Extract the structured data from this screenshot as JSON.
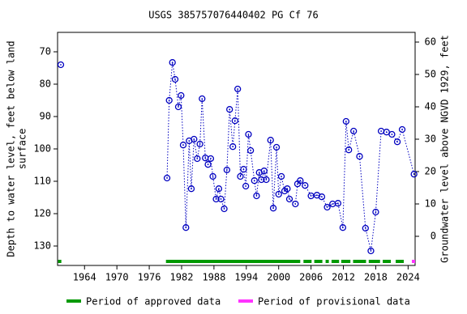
{
  "chart_data": {
    "type": "scatter",
    "title": "USGS 385757076440402 PG Cf  76",
    "y_label": [
      "Depth to water level, feet below land",
      "surface"
    ],
    "y2_label": "Groundwater level above NGVD 1929, feet",
    "xlim": [
      1959,
      2025.3
    ],
    "xticks": [
      1964,
      1970,
      1976,
      1982,
      1988,
      1994,
      2000,
      2006,
      2012,
      2018,
      2024
    ],
    "ylim": [
      136,
      64
    ],
    "yticks": [
      70,
      80,
      90,
      100,
      110,
      120,
      130
    ],
    "y2lim": [
      -9,
      63
    ],
    "y2ticks": [
      60,
      50,
      40,
      30,
      20,
      10,
      0
    ],
    "series": [
      {
        "name": "Depth to water level",
        "color": "#0000c0",
        "x": [
          1959.6,
          1979.3,
          1979.7,
          1980.3,
          1980.8,
          1981.4,
          1981.9,
          1982.3,
          1982.8,
          1983.4,
          1983.8,
          1984.3,
          1984.9,
          1985.4,
          1985.8,
          1986.4,
          1986.9,
          1987.4,
          1987.8,
          1988.4,
          1988.9,
          1989.3,
          1989.9,
          1990.4,
          1990.9,
          1991.5,
          1991.9,
          1992.4,
          1992.9,
          1993.5,
          1993.9,
          1994.4,
          1994.8,
          1995.5,
          1995.9,
          1996.4,
          1996.8,
          1997.3,
          1997.7,
          1998.5,
          1999.0,
          1999.6,
          2000.0,
          2000.5,
          2001.1,
          2001.6,
          2002.0,
          2003.1,
          2003.5,
          2004.0,
          2004.9,
          2006.0,
          2007.1,
          2008.0,
          2009.0,
          2010.0,
          2011.0,
          2011.9,
          2012.5,
          2013.0,
          2013.9,
          2015.0,
          2016.1,
          2017.1,
          2018.0,
          2019.0,
          2020.0,
          2021.0,
          2022.0,
          2022.9,
          2025.1
        ],
        "values": [
          74,
          109,
          85,
          73.3,
          78.5,
          87,
          83.5,
          98.8,
          124.3,
          97.5,
          112.3,
          97,
          103,
          98.5,
          84.5,
          102.8,
          104.8,
          103,
          108.5,
          115.5,
          112.3,
          115.5,
          118.5,
          106.5,
          87.8,
          99.3,
          91.3,
          81.5,
          108.5,
          106.3,
          111.5,
          95.5,
          100.5,
          109.8,
          114.5,
          107.3,
          109.5,
          106.8,
          109.5,
          97.3,
          118.3,
          99.5,
          114,
          108.5,
          113,
          112.3,
          115.5,
          117,
          110.8,
          109.8,
          111.3,
          114.5,
          114.3,
          114.8,
          118,
          117,
          116.8,
          124.3,
          91.5,
          100.3,
          94.5,
          102.3,
          124.5,
          131.5,
          119.5,
          94.5,
          94.8,
          95.5,
          97.8,
          94,
          107.8
        ]
      }
    ],
    "periods": [
      {
        "name": "Period of approved data",
        "color": "#009900",
        "ranges": [
          [
            1959.1,
            1959.7
          ],
          [
            1979.1,
            2004.0
          ],
          [
            2004.6,
            2006.1
          ],
          [
            2006.6,
            2008.1
          ],
          [
            2008.7,
            2009.3
          ],
          [
            2009.8,
            2011.2
          ],
          [
            2011.6,
            2013.3
          ],
          [
            2013.8,
            2016.2
          ],
          [
            2016.7,
            2018.8
          ],
          [
            2019.3,
            2020.8
          ],
          [
            2021.7,
            2023.2
          ]
        ]
      },
      {
        "name": "Period of provisional data",
        "color": "#ff33ff",
        "ranges": [
          [
            2024.7,
            2025.3
          ]
        ]
      }
    ]
  }
}
